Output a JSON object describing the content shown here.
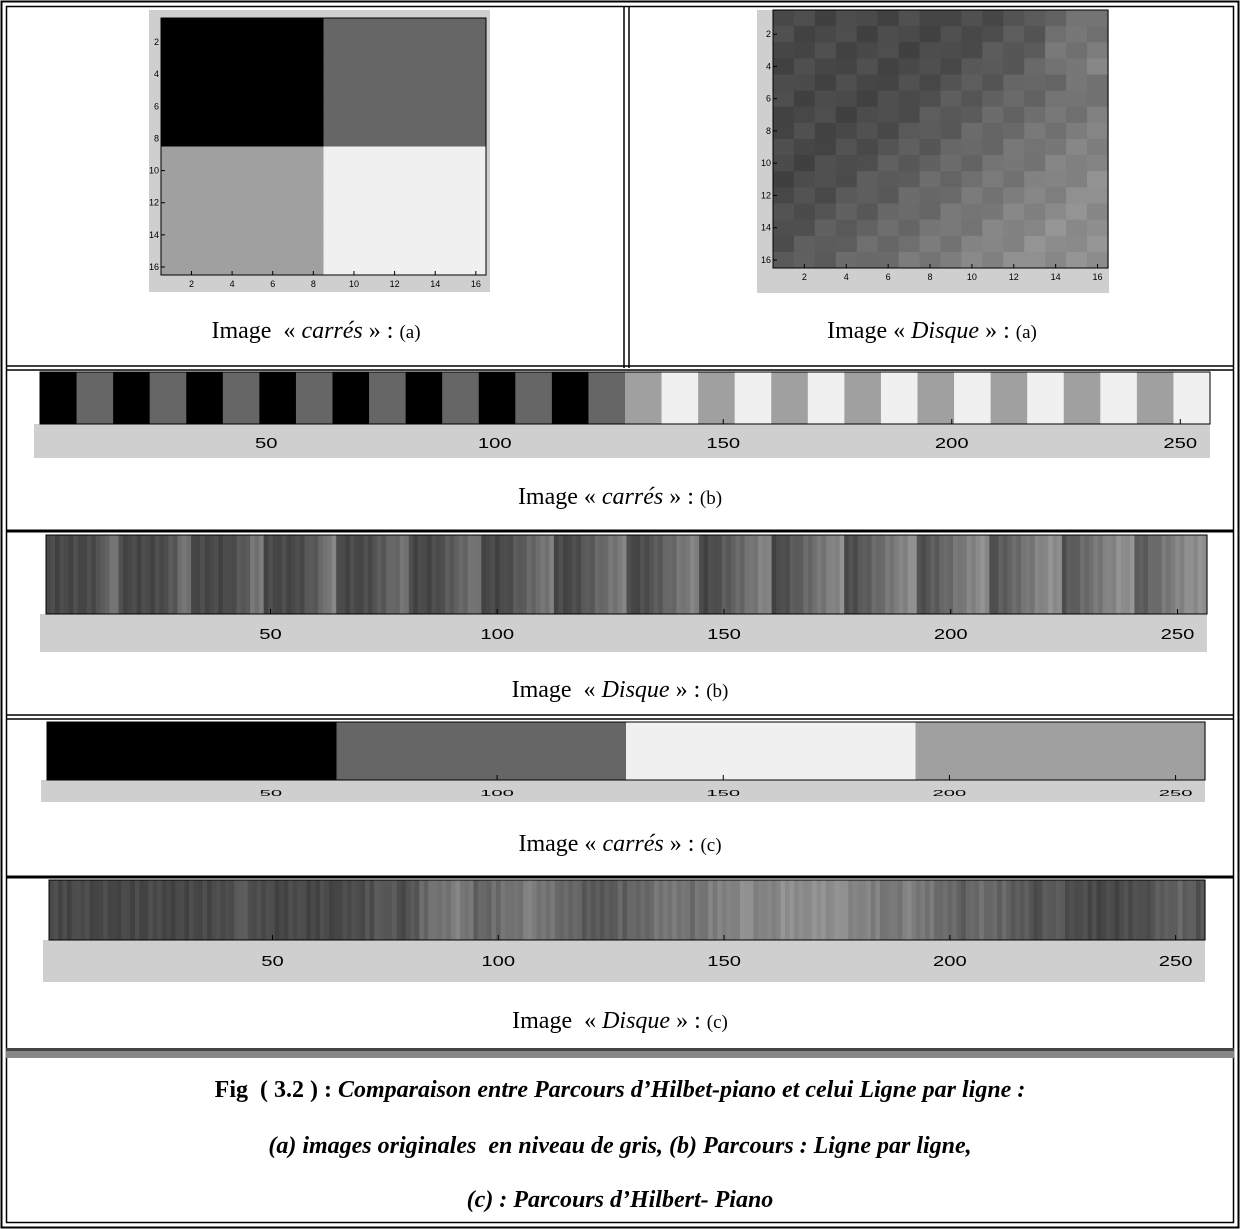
{
  "panels": [
    {
      "x_ticks": [
        2,
        4,
        6,
        8,
        10,
        12,
        14,
        16
      ],
      "y_ticks": [
        2,
        4,
        6,
        8,
        10,
        12,
        14,
        16
      ],
      "caption": {
        "lead": "Image  « ",
        "name": "carrés",
        "trail": " » : ",
        "tag": "(a)"
      }
    },
    {
      "x_ticks": [
        2,
        4,
        6,
        8,
        10,
        12,
        14,
        16
      ],
      "y_ticks": [
        2,
        4,
        6,
        8,
        10,
        12,
        14,
        16
      ],
      "caption": {
        "lead": "Image « ",
        "name": "Disque",
        "trail": " » : ",
        "tag": "(a)"
      }
    },
    {
      "x_ticks": [
        50,
        100,
        150,
        200,
        250
      ],
      "caption": {
        "lead": "Image « ",
        "name": "carrés",
        "trail": " » : ",
        "tag": "(b)"
      }
    },
    {
      "x_ticks": [
        50,
        100,
        150,
        200,
        250
      ],
      "caption": {
        "lead": "Image  « ",
        "name": "Disque",
        "trail": " » : ",
        "tag": "(b)"
      }
    },
    {
      "x_ticks": [
        50,
        100,
        150,
        200,
        250
      ],
      "caption": {
        "lead": "Image « ",
        "name": "carrés",
        "trail": " » : ",
        "tag": "(c)"
      }
    },
    {
      "x_ticks": [
        50,
        100,
        150,
        200,
        250
      ],
      "caption": {
        "lead": "Image  « ",
        "name": "Disque",
        "trail": " » : ",
        "tag": "(c)"
      }
    }
  ],
  "figure_caption": {
    "label": "Fig  ( 3.2 ) : ",
    "lines": [
      "Comparaison entre Parcours d’Hilbet-piano et celui Ligne par ligne :",
      "(a) images originales  en niveau de gris, (b) Parcours : Ligne par ligne,",
      "(c) : Parcours d’Hilbert- Piano"
    ]
  }
}
